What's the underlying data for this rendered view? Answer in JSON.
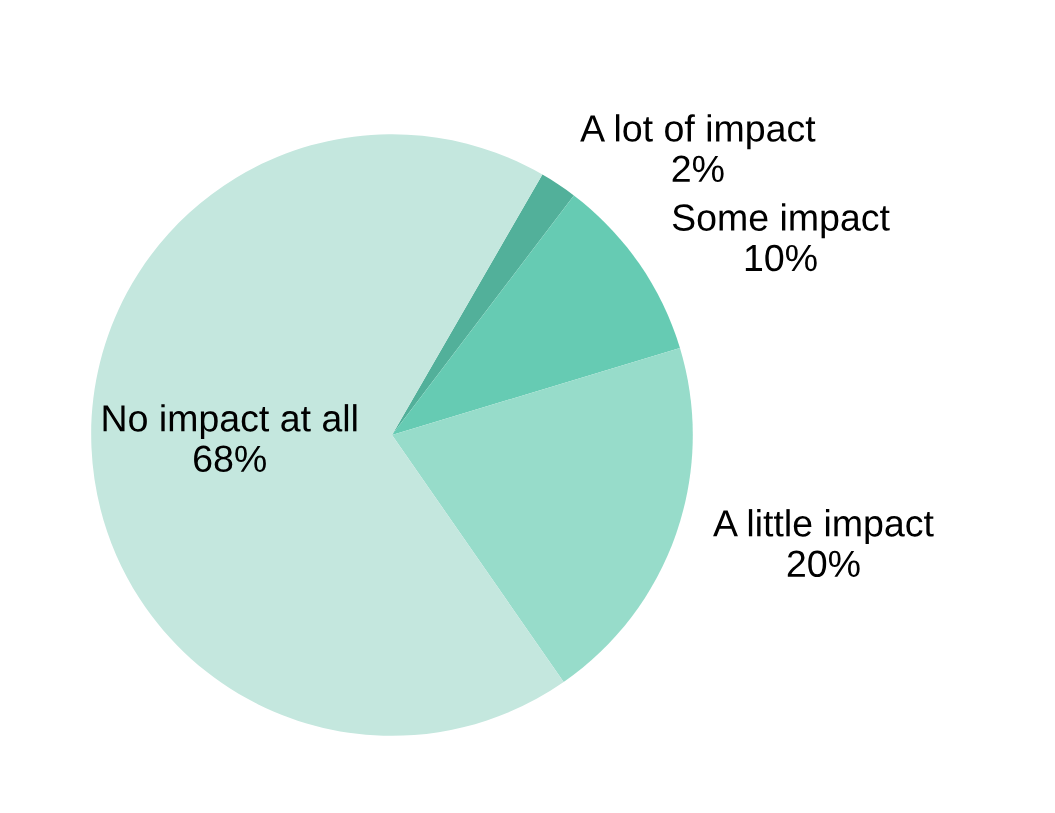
{
  "chart_data": {
    "type": "pie",
    "categories": [
      "A lot of impact",
      "Some impact",
      "A little impact",
      "No impact at all"
    ],
    "values": [
      2,
      10,
      20,
      68
    ],
    "colors": [
      "#52b09a",
      "#66cbb3",
      "#97dcca",
      "#c4e7de"
    ],
    "value_labels": [
      "2%",
      "10%",
      "20%",
      "68%"
    ]
  }
}
